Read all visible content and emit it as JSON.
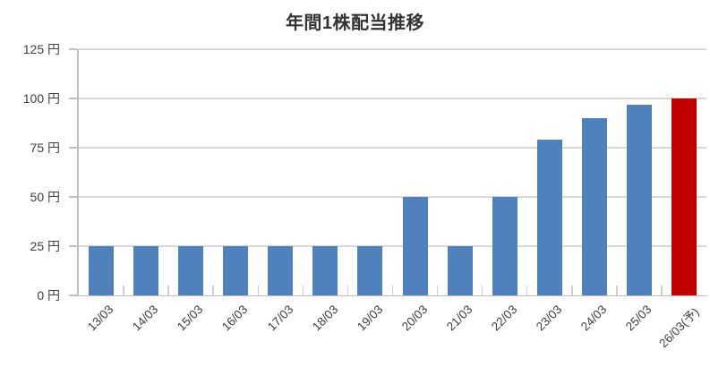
{
  "chart_data": {
    "type": "bar",
    "title": "年間1株配当推移",
    "unit": "円",
    "categories": [
      "13/03",
      "14/03",
      "15/03",
      "16/03",
      "17/03",
      "18/03",
      "19/03",
      "20/03",
      "21/03",
      "22/03",
      "23/03",
      "24/03",
      "25/03",
      "26/03(予)"
    ],
    "values": [
      25,
      25,
      25,
      25,
      25,
      25,
      25,
      50,
      25,
      50,
      79,
      90,
      97,
      100
    ],
    "highlight_index": 13,
    "y_ticks": [
      0,
      25,
      50,
      75,
      100,
      125
    ],
    "y_tick_labels": [
      "0 円",
      "25 円",
      "50 円",
      "75 円",
      "100 円",
      "125 円"
    ],
    "ylim": [
      0,
      125
    ],
    "grid": true,
    "legend": "none",
    "xlabel": "",
    "ylabel": "",
    "colors": {
      "bar": "#4F81BD",
      "highlight": "#C00000",
      "gridline": "#D9D9D9",
      "axis": "#BFBFBF",
      "tick": "#CFCFCF",
      "label": "#404040",
      "title": "#333333"
    }
  }
}
